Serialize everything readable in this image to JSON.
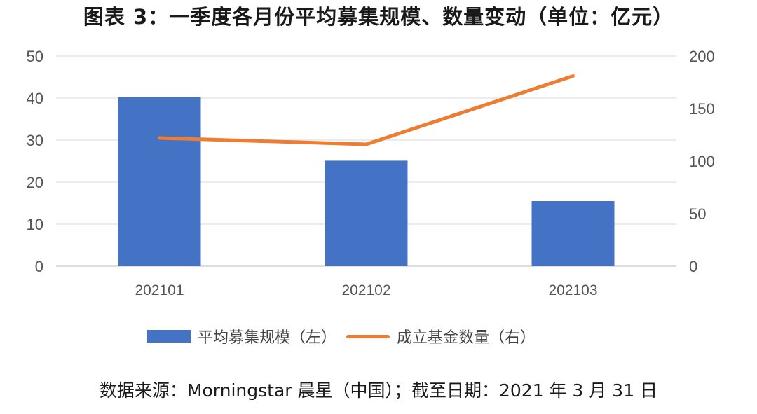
{
  "title": "图表 3：一季度各月份平均募集规模、数量变动（单位：亿元）",
  "source": "数据来源：Morningstar 晨星（中国）；截至日期：2021 年 3 月 31 日",
  "chart_data": {
    "type": "bar",
    "categories": [
      "202101",
      "202102",
      "202103"
    ],
    "series": [
      {
        "name": "平均募集规模（左）",
        "type": "bar",
        "axis": "left",
        "color": "#4472C4",
        "values": [
          40.2,
          25.1,
          15.5
        ]
      },
      {
        "name": "成立基金数量（右）",
        "type": "line",
        "axis": "right",
        "color": "#ED7D31",
        "values": [
          122,
          116,
          181
        ]
      }
    ],
    "ylim_left": [
      0,
      50
    ],
    "yticks_left": [
      "0",
      "10",
      "20",
      "30",
      "40",
      "50"
    ],
    "ylim_right": [
      0,
      200
    ],
    "yticks_right": [
      "0",
      "50",
      "100",
      "150",
      "200"
    ],
    "grid": true,
    "legend_position": "bottom"
  }
}
